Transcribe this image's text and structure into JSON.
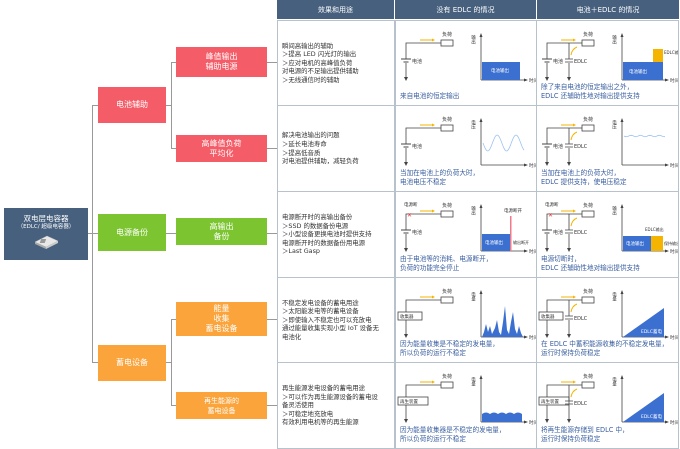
{
  "root": {
    "title": "双电层电容器",
    "subtitle": "（EDLC/ 超级电容器）"
  },
  "headers": [
    "效果和用途",
    "没有 EDLC 的情况",
    "电池＋EDLC 的情况"
  ],
  "groups": [
    {
      "label": "电池辅助",
      "color": "#f45c68"
    },
    {
      "label": "电源备份",
      "color": "#7cc531"
    },
    {
      "label": "蓄电设备",
      "color": "#fba43c"
    }
  ],
  "rows": [
    {
      "node": "峰值输出\n辅助电源",
      "usage": "瞬间高输出的辅助\n＞提高 LED 闪光灯的输出\n＞应对电机的高峰值负荷\n对电源的不足输出提供辅助\n＞无线通信时的辅助",
      "without": {
        "type": "bar",
        "caption": "来自电池的恒定输出",
        "source": "电池",
        "yaxis": "输出",
        "labels": [
          "电池输出"
        ]
      },
      "with": {
        "type": "bar-edlc",
        "caption": "除了来自电池的恒定输出之外，\nEDLC 还辅助性地对输出提供支持",
        "source": "电池",
        "yaxis": "输出",
        "labels": [
          "电池输出",
          "EDLC输出"
        ]
      }
    },
    {
      "node": "高峰值负荷\n平均化",
      "usage": "解决电池输出的问题\n＞延长电池寿命\n＞提高低音质\n对电池提供辅助，减轻负荷",
      "without": {
        "type": "wave",
        "caption": "当加在电池上的负荷大时，\n电池电压不稳定",
        "source": "电池",
        "yaxis": "电压",
        "labels": []
      },
      "with": {
        "type": "flat",
        "caption": "当加在电池上的负荷大时，\nEDLC 提供支持，使电压稳定",
        "source": "电池",
        "yaxis": "电压",
        "labels": []
      }
    },
    {
      "node": "高输出\n备份",
      "usage": "电源断开时的高输出备份\n＞SSD 的数据备份电源\n＞小型设备更换电池时提供支持\n电源断开时的数据备份用电源\n＞Last Gasp",
      "without": {
        "type": "cutoff",
        "caption": "由于电池等的消耗、电源断开，\n负荷的功能完全停止",
        "source": "电池",
        "yaxis": "输出",
        "labels": [
          "电池输出",
          "电源断开",
          "输出断开",
          "电源断"
        ]
      },
      "with": {
        "type": "cutoff-edlc",
        "caption": "电源切断时，\nEDLC 还辅助性地对输出提供支持",
        "source": "电池",
        "yaxis": "输出",
        "labels": [
          "电池输出",
          "EDLC输出",
          "保持输出",
          "电源断"
        ]
      }
    },
    {
      "node": "能量\n收集\n蓄电设备",
      "usage": "不稳定发电设备的蓄电用途\n＞太阳能发电等的蓄电设备\n＞即使输入不稳定也可以充放电\n通过能量收集实现小型 IoT 设备无\n电池化",
      "without": {
        "type": "spikes",
        "caption": "因为能量收集是不稳定的发电量，\n所以负荷的运行不稳定",
        "source": "收集器",
        "yaxis": "电量",
        "labels": []
      },
      "with": {
        "type": "ramp",
        "caption": "在 EDLC 中蓄积能源收集的不稳定发电量，\n运行时保持负荷稳定",
        "source": "收集器",
        "yaxis": "电量",
        "labels": [
          "EDLC蓄电"
        ]
      }
    },
    {
      "node": "再生能源的\n蓄电设备",
      "usage": "再生能源发电设备的蓄电用途\n＞可以作为再生能源设备的蓄电设\n备灵活使用\n＞可稳定地充放电\n有效利用电机等的再生能源",
      "without": {
        "type": "lowwave",
        "caption": "因为能量收集器是不稳定的发电量，\n所以负荷的运行不稳定",
        "source": "再生装置",
        "yaxis": "电量",
        "labels": []
      },
      "with": {
        "type": "ramp",
        "caption": "将再生能源存储到 EDLC 中，\n运行时保持负荷稳定",
        "source": "再生装置",
        "yaxis": "电量",
        "labels": [
          "EDLC蓄电"
        ]
      }
    }
  ],
  "diagram": {
    "load": "负荷",
    "time": "时间",
    "edlc": "EDLC"
  },
  "colors": {
    "header": "#46607e",
    "battery_output": "#3b6fd0",
    "edlc_output": "#f5b400",
    "wave": "#9cc3f0",
    "cutoff": "#f07a8a",
    "arrow": "#f5b400"
  }
}
